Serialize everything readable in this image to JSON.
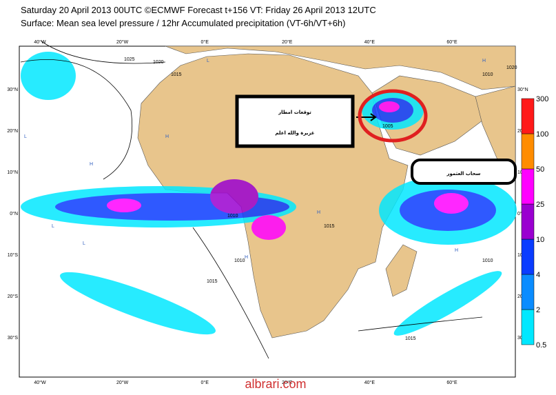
{
  "header": {
    "line1": "Saturday 20 April 2013 00UTC ©ECMWF Forecast t+156 VT: Friday 26 April 2013 12UTC",
    "line2": "Surface: Mean sea level pressure / 12hr Accumulated precipitation (VT-6h/VT+6h)"
  },
  "map": {
    "lon_labels": [
      "40°W",
      "20°W",
      "0°E",
      "20°E",
      "40°E",
      "60°E"
    ],
    "lat_labels": [
      "30°N",
      "20°N",
      "10°N",
      "0°N",
      "10°S",
      "20°S",
      "30°S"
    ],
    "isobars": [
      {
        "label": "1025"
      },
      {
        "label": "1020"
      },
      {
        "label": "1015"
      },
      {
        "label": "1010"
      },
      {
        "label": "1015"
      },
      {
        "label": "1010"
      },
      {
        "label": "1005"
      },
      {
        "label": "1015"
      },
      {
        "label": "1010"
      },
      {
        "label": "1015"
      },
      {
        "label": "1010"
      },
      {
        "label": "1020"
      }
    ],
    "pressure_centres": [
      "H",
      "H",
      "L",
      "H",
      "L",
      "H",
      "L",
      "H",
      "L",
      "H"
    ]
  },
  "colorbar": {
    "levels": [
      0.5,
      2,
      4,
      10,
      25,
      50,
      100,
      300
    ],
    "colors": [
      "#00e8ff",
      "#0a8cff",
      "#0a3cff",
      "#9a00d0",
      "#ff00ff",
      "#ff8c00",
      "#ff1a1a"
    ]
  },
  "annotations": {
    "box_line1": "توقعات امطار",
    "box_line2": "غزيرة والله اعلم",
    "cloud_label": "سحاب العثمور"
  },
  "watermark": "albrari.com"
}
